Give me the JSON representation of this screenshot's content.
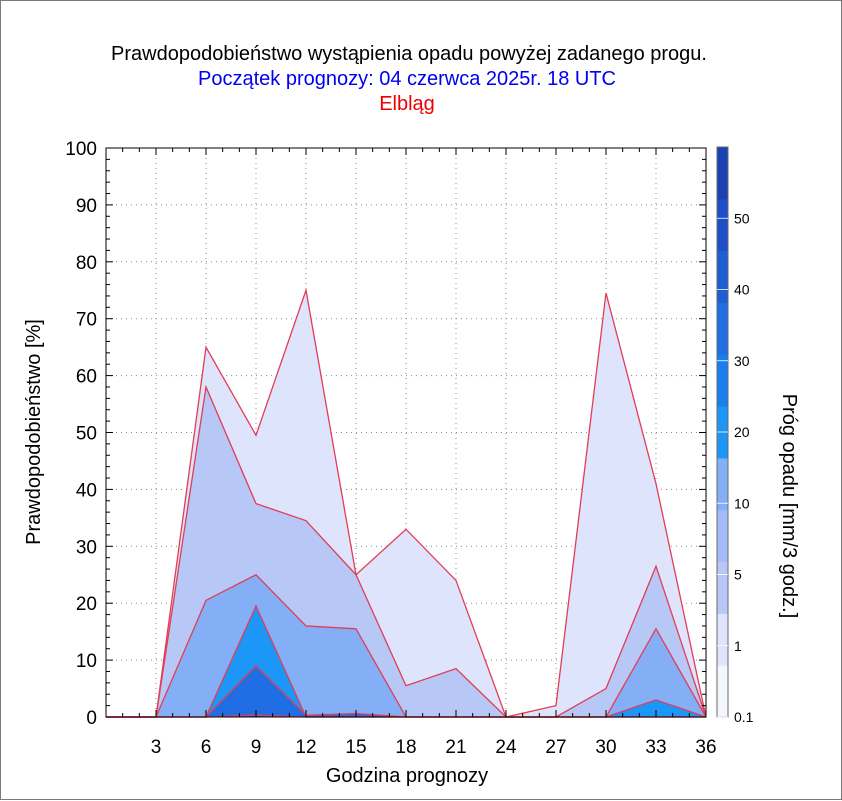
{
  "chart_data": {
    "type": "area",
    "title": "Prawdopodobieństwo wystąpienia opadu powyżej zadanego progu.",
    "subtitle": "Początek prognozy: 04 czerwca 2025r. 18 UTC",
    "location": "Elbląg",
    "xlabel": "Godzina prognozy",
    "ylabel": "Prawdopodobieństwo [%]",
    "colorbar_label": "Próg opadu [mm/3 godz.]",
    "xlim": [
      0,
      36
    ],
    "ylim": [
      0,
      100
    ],
    "x_ticks": [
      3,
      6,
      9,
      12,
      15,
      18,
      21,
      24,
      27,
      30,
      33,
      36
    ],
    "y_ticks": [
      0,
      10,
      20,
      30,
      40,
      50,
      60,
      70,
      80,
      90,
      100
    ],
    "grid": true,
    "x": [
      0,
      3,
      6,
      9,
      12,
      15,
      18,
      21,
      24,
      27,
      30,
      33,
      36
    ],
    "series": [
      {
        "values": [
          0,
          0,
          65,
          49.5,
          75,
          25,
          33,
          24,
          0,
          2,
          74.5,
          41,
          0
        ],
        "color": "#dde4fb"
      },
      {
        "values": [
          0,
          0,
          58,
          37.5,
          34.5,
          25,
          5.5,
          8.5,
          0,
          0,
          5,
          26.5,
          0
        ],
        "color": "#b7c8f6"
      },
      {
        "values": [
          0,
          0,
          20.5,
          25,
          16,
          15.5,
          0,
          0,
          0,
          0,
          0,
          15.5,
          0
        ],
        "color": "#84aef5"
      },
      {
        "values": [
          0,
          0,
          0,
          19.5,
          0,
          0,
          0,
          0,
          0,
          0,
          0,
          3,
          0
        ],
        "color": "#1c97f7"
      },
      {
        "values": [
          0,
          0,
          0,
          9,
          0.3,
          0.6,
          0,
          0,
          0,
          0,
          0,
          0,
          0
        ],
        "color": "#1f6ee3"
      },
      {
        "values": [
          0,
          0,
          0,
          0.3,
          0,
          0,
          0,
          0,
          0,
          0,
          0,
          0,
          0
        ],
        "color": "#1d4fc8"
      }
    ],
    "colorbar": {
      "labels": [
        "0.1",
        "1",
        "5",
        "10",
        "20",
        "30",
        "40",
        "50"
      ],
      "colors": [
        "#f4f6fe",
        "#dde4fb",
        "#b7c8f6",
        "#a3bcf7",
        "#84aef5",
        "#1c97f7",
        "#1a7fee",
        "#1f6ee3",
        "#1d5ed6",
        "#1d4fc8",
        "#1a42b3"
      ]
    },
    "colors": {
      "title": "#000000",
      "subtitle": "#0000ee",
      "location": "#ee0000",
      "outline": "#e23d55"
    }
  }
}
